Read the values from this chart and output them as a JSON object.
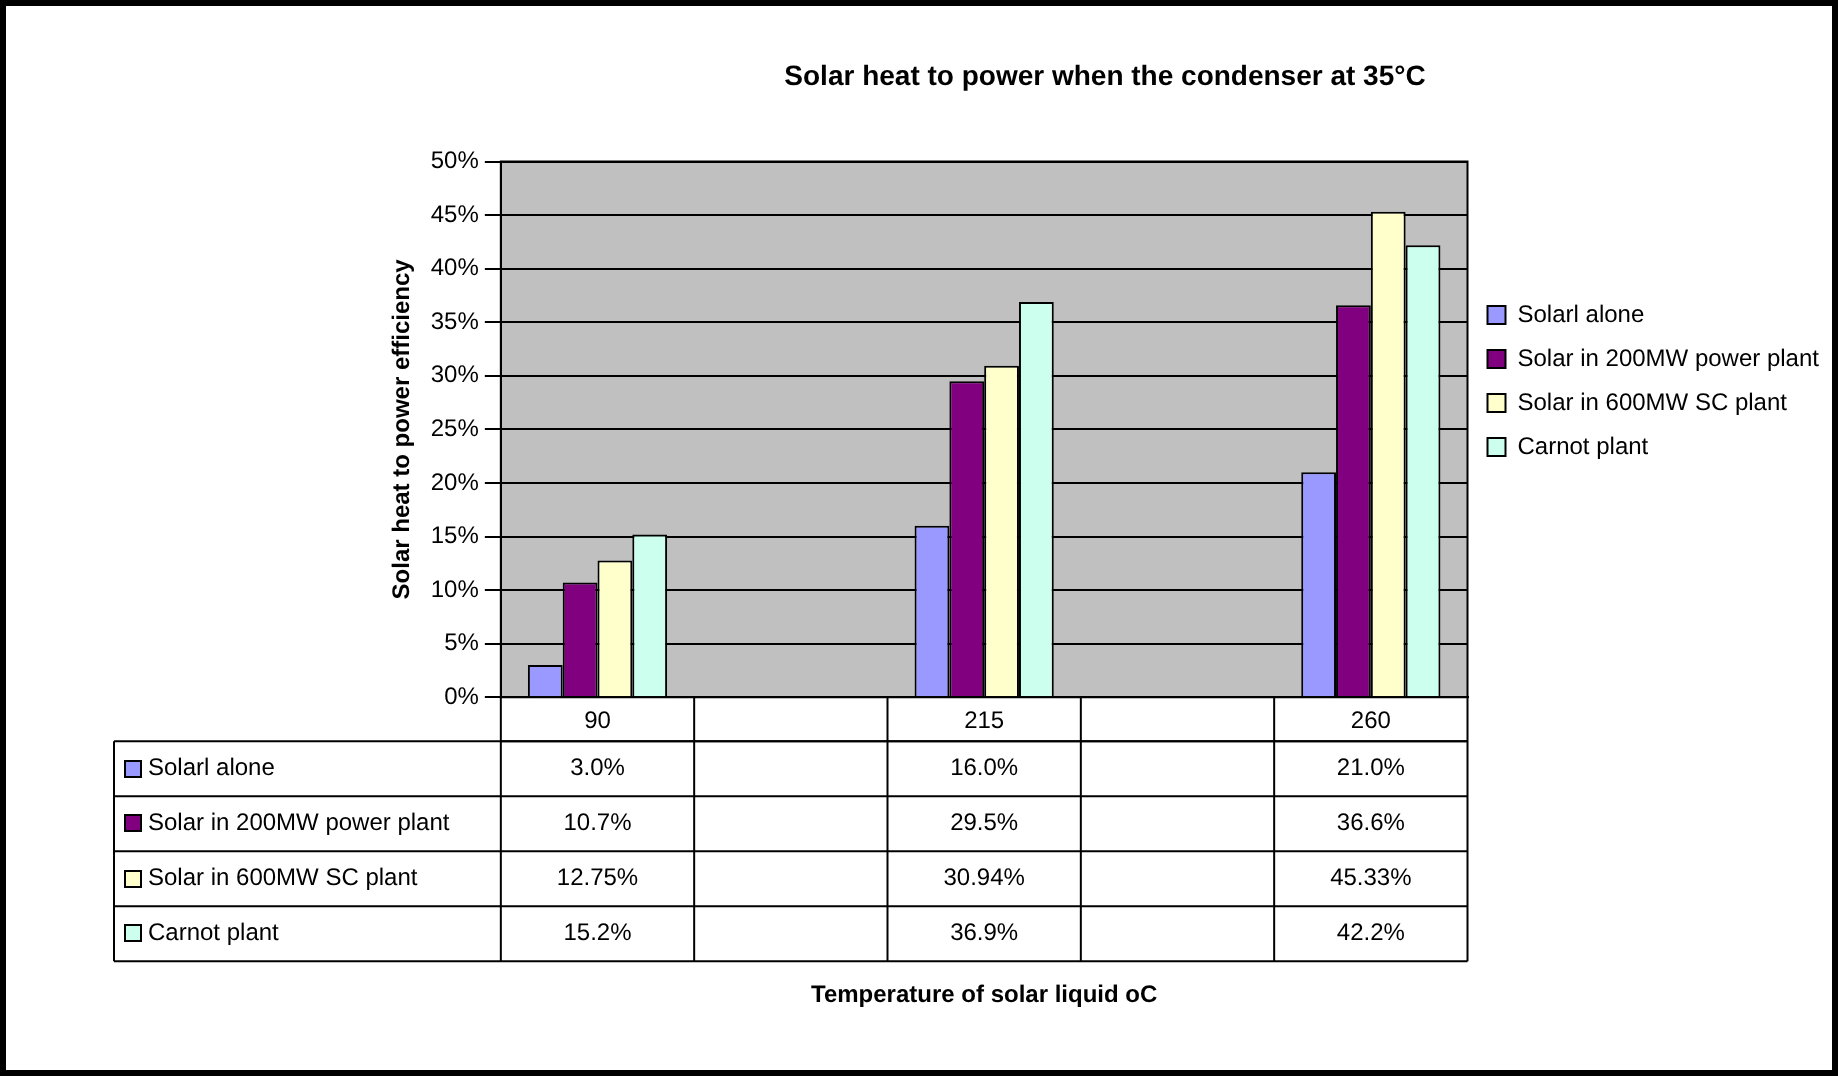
{
  "chart_data": {
    "type": "bar",
    "title": "Solar heat to power when the condenser at 35°C",
    "annotations": [
      "Temperature of solar liquid oC"
    ],
    "ylabel": "Solar heat to power efficiency",
    "categories": [
      "90",
      null,
      "215",
      null,
      "260"
    ],
    "series": [
      {
        "name": "Solarl alone",
        "color": "#9999ff",
        "values": [
          3.0,
          null,
          16.0,
          null,
          21.0
        ],
        "value_labels": [
          "3.0%",
          null,
          "16.0%",
          null,
          "21.0%"
        ]
      },
      {
        "name": "Solar in 200MW power plant",
        "color": "#800080",
        "values": [
          10.7,
          null,
          29.5,
          null,
          36.6
        ],
        "value_labels": [
          "10.7%",
          null,
          "29.5%",
          null,
          "36.6%"
        ]
      },
      {
        "name": "Solar in 600MW SC plant",
        "color": "#ffffcc",
        "values": [
          12.75,
          null,
          30.94,
          null,
          45.33
        ],
        "value_labels": [
          "12.75%",
          null,
          "30.94%",
          null,
          "45.33%"
        ]
      },
      {
        "name": "Carnot plant",
        "color": "#ccffee",
        "values": [
          15.2,
          null,
          36.9,
          null,
          42.2
        ],
        "value_labels": [
          "15.2%",
          null,
          "36.9%",
          null,
          "42.2%"
        ]
      }
    ],
    "ylim": [
      0,
      50
    ],
    "yticks": [
      {
        "value": 0,
        "label": "0%"
      },
      {
        "value": 5,
        "label": "5%"
      },
      {
        "value": 10,
        "label": "10%"
      },
      {
        "value": 15,
        "label": "15%"
      },
      {
        "value": 20,
        "label": "20%"
      },
      {
        "value": 25,
        "label": "25%"
      },
      {
        "value": 30,
        "label": "30%"
      },
      {
        "value": 35,
        "label": "35%"
      },
      {
        "value": 40,
        "label": "40%"
      },
      {
        "value": 45,
        "label": "45%"
      },
      {
        "value": 50,
        "label": "50%"
      }
    ],
    "grid": "y",
    "legend": "right"
  }
}
